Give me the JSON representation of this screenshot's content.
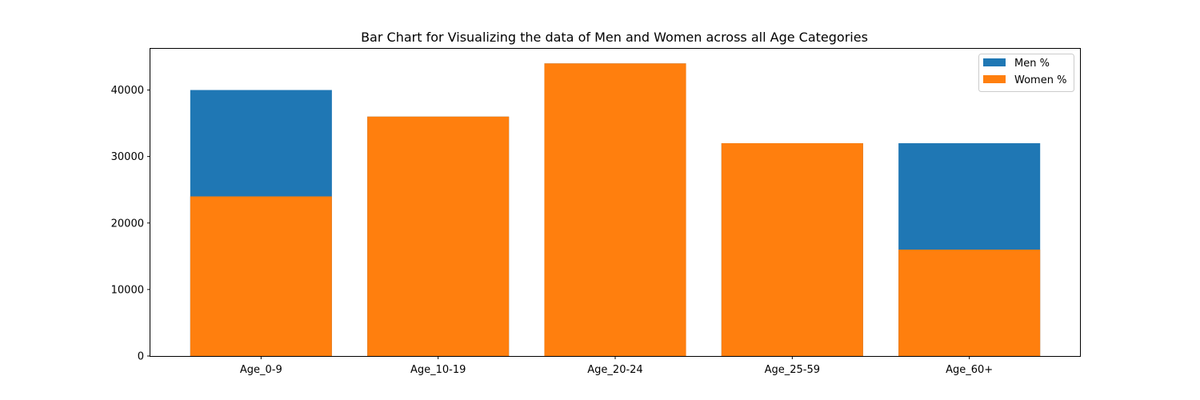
{
  "chart_data": {
    "type": "bar",
    "title": "Bar Chart for Visualizing the data of Men and Women across all Age Categories",
    "xlabel": "",
    "ylabel": "",
    "categories": [
      "Age_0-9",
      "Age_10-19",
      "Age_20-24",
      "Age_25-59",
      "Age_60+"
    ],
    "series": [
      {
        "name": "Men %",
        "values": [
          40000,
          36000,
          44000,
          32000,
          32000
        ],
        "color": "#1f77b4"
      },
      {
        "name": "Women %",
        "values": [
          24000,
          36000,
          44000,
          32000,
          16000
        ],
        "color": "#ff7f0e"
      }
    ],
    "overlapping": true,
    "ylim": [
      0,
      46200
    ],
    "yticks": [
      0,
      10000,
      20000,
      30000,
      40000
    ],
    "ytick_labels": [
      "0",
      "10000",
      "20000",
      "30000",
      "40000"
    ],
    "grid": false,
    "legend_position": "top-right"
  }
}
